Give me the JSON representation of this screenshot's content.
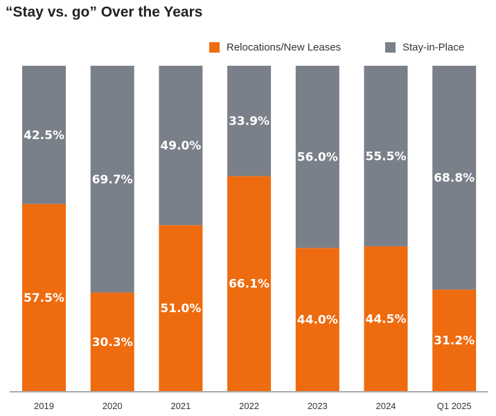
{
  "chart_data": {
    "type": "bar",
    "stacked": true,
    "normalized_to": 100,
    "title": "“Stay vs. go” Over the Years",
    "categories": [
      "2019",
      "2020",
      "2021",
      "2022",
      "2023",
      "2024",
      "Q1 2025"
    ],
    "series": [
      {
        "name": "Relocations/New Leases",
        "color": "#EE6B0F",
        "values": [
          57.5,
          30.3,
          51.0,
          66.1,
          44.0,
          44.5,
          31.2
        ],
        "labels": [
          "57.5%",
          "30.3%",
          "51.0%",
          "66.1%",
          "44.0%",
          "44.5%",
          "31.2%"
        ]
      },
      {
        "name": "Stay-in-Place",
        "color": "#7A8089",
        "values": [
          42.5,
          69.7,
          49.0,
          33.9,
          56.0,
          55.5,
          68.8
        ],
        "labels": [
          "42.5%",
          "69.7%",
          "49.0%",
          "33.9%",
          "56.0%",
          "55.5%",
          "68.8%"
        ]
      }
    ],
    "ylim": [
      0,
      100
    ],
    "legend_position": "top-right",
    "grid": false
  }
}
